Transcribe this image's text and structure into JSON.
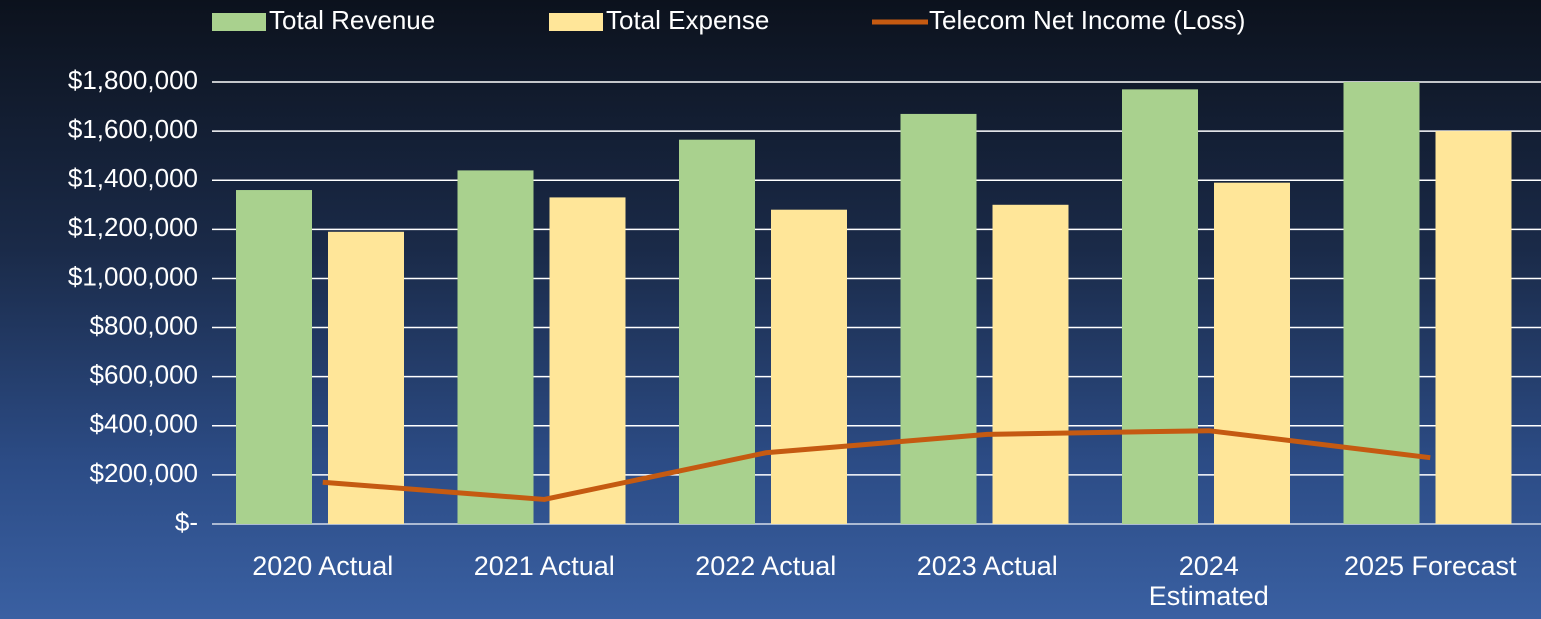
{
  "chart_data": {
    "type": "bar",
    "categories": [
      "2020 Actual",
      "2021 Actual",
      "2022 Actual",
      "2023 Actual",
      "2024 Estimated",
      "2025 Forecast"
    ],
    "series": [
      {
        "name": "Total Revenue",
        "type": "bar",
        "color": "#a9d18e",
        "values": [
          1360000,
          1440000,
          1565000,
          1670000,
          1770000,
          1800000
        ]
      },
      {
        "name": "Total Expense",
        "type": "bar",
        "color": "#ffe699",
        "values": [
          1190000,
          1330000,
          1280000,
          1300000,
          1390000,
          1600000
        ]
      },
      {
        "name": "Telecom Net Income (Loss)",
        "type": "line",
        "color": "#c55a11",
        "values": [
          170000,
          100000,
          290000,
          365000,
          380000,
          270000
        ]
      }
    ],
    "ylim": [
      0,
      1800000
    ],
    "yticks": [
      {
        "value": 0,
        "label": "$-"
      },
      {
        "value": 200000,
        "label": "$200,000"
      },
      {
        "value": 400000,
        "label": "$400,000"
      },
      {
        "value": 600000,
        "label": "$600,000"
      },
      {
        "value": 800000,
        "label": "$800,000"
      },
      {
        "value": 1000000,
        "label": "$1,000,000"
      },
      {
        "value": 1200000,
        "label": "$1,200,000"
      },
      {
        "value": 1400000,
        "label": "$1,400,000"
      },
      {
        "value": 1600000,
        "label": "$1,600,000"
      },
      {
        "value": 1800000,
        "label": "$1,800,000"
      }
    ],
    "grid": true,
    "legend": "top"
  }
}
